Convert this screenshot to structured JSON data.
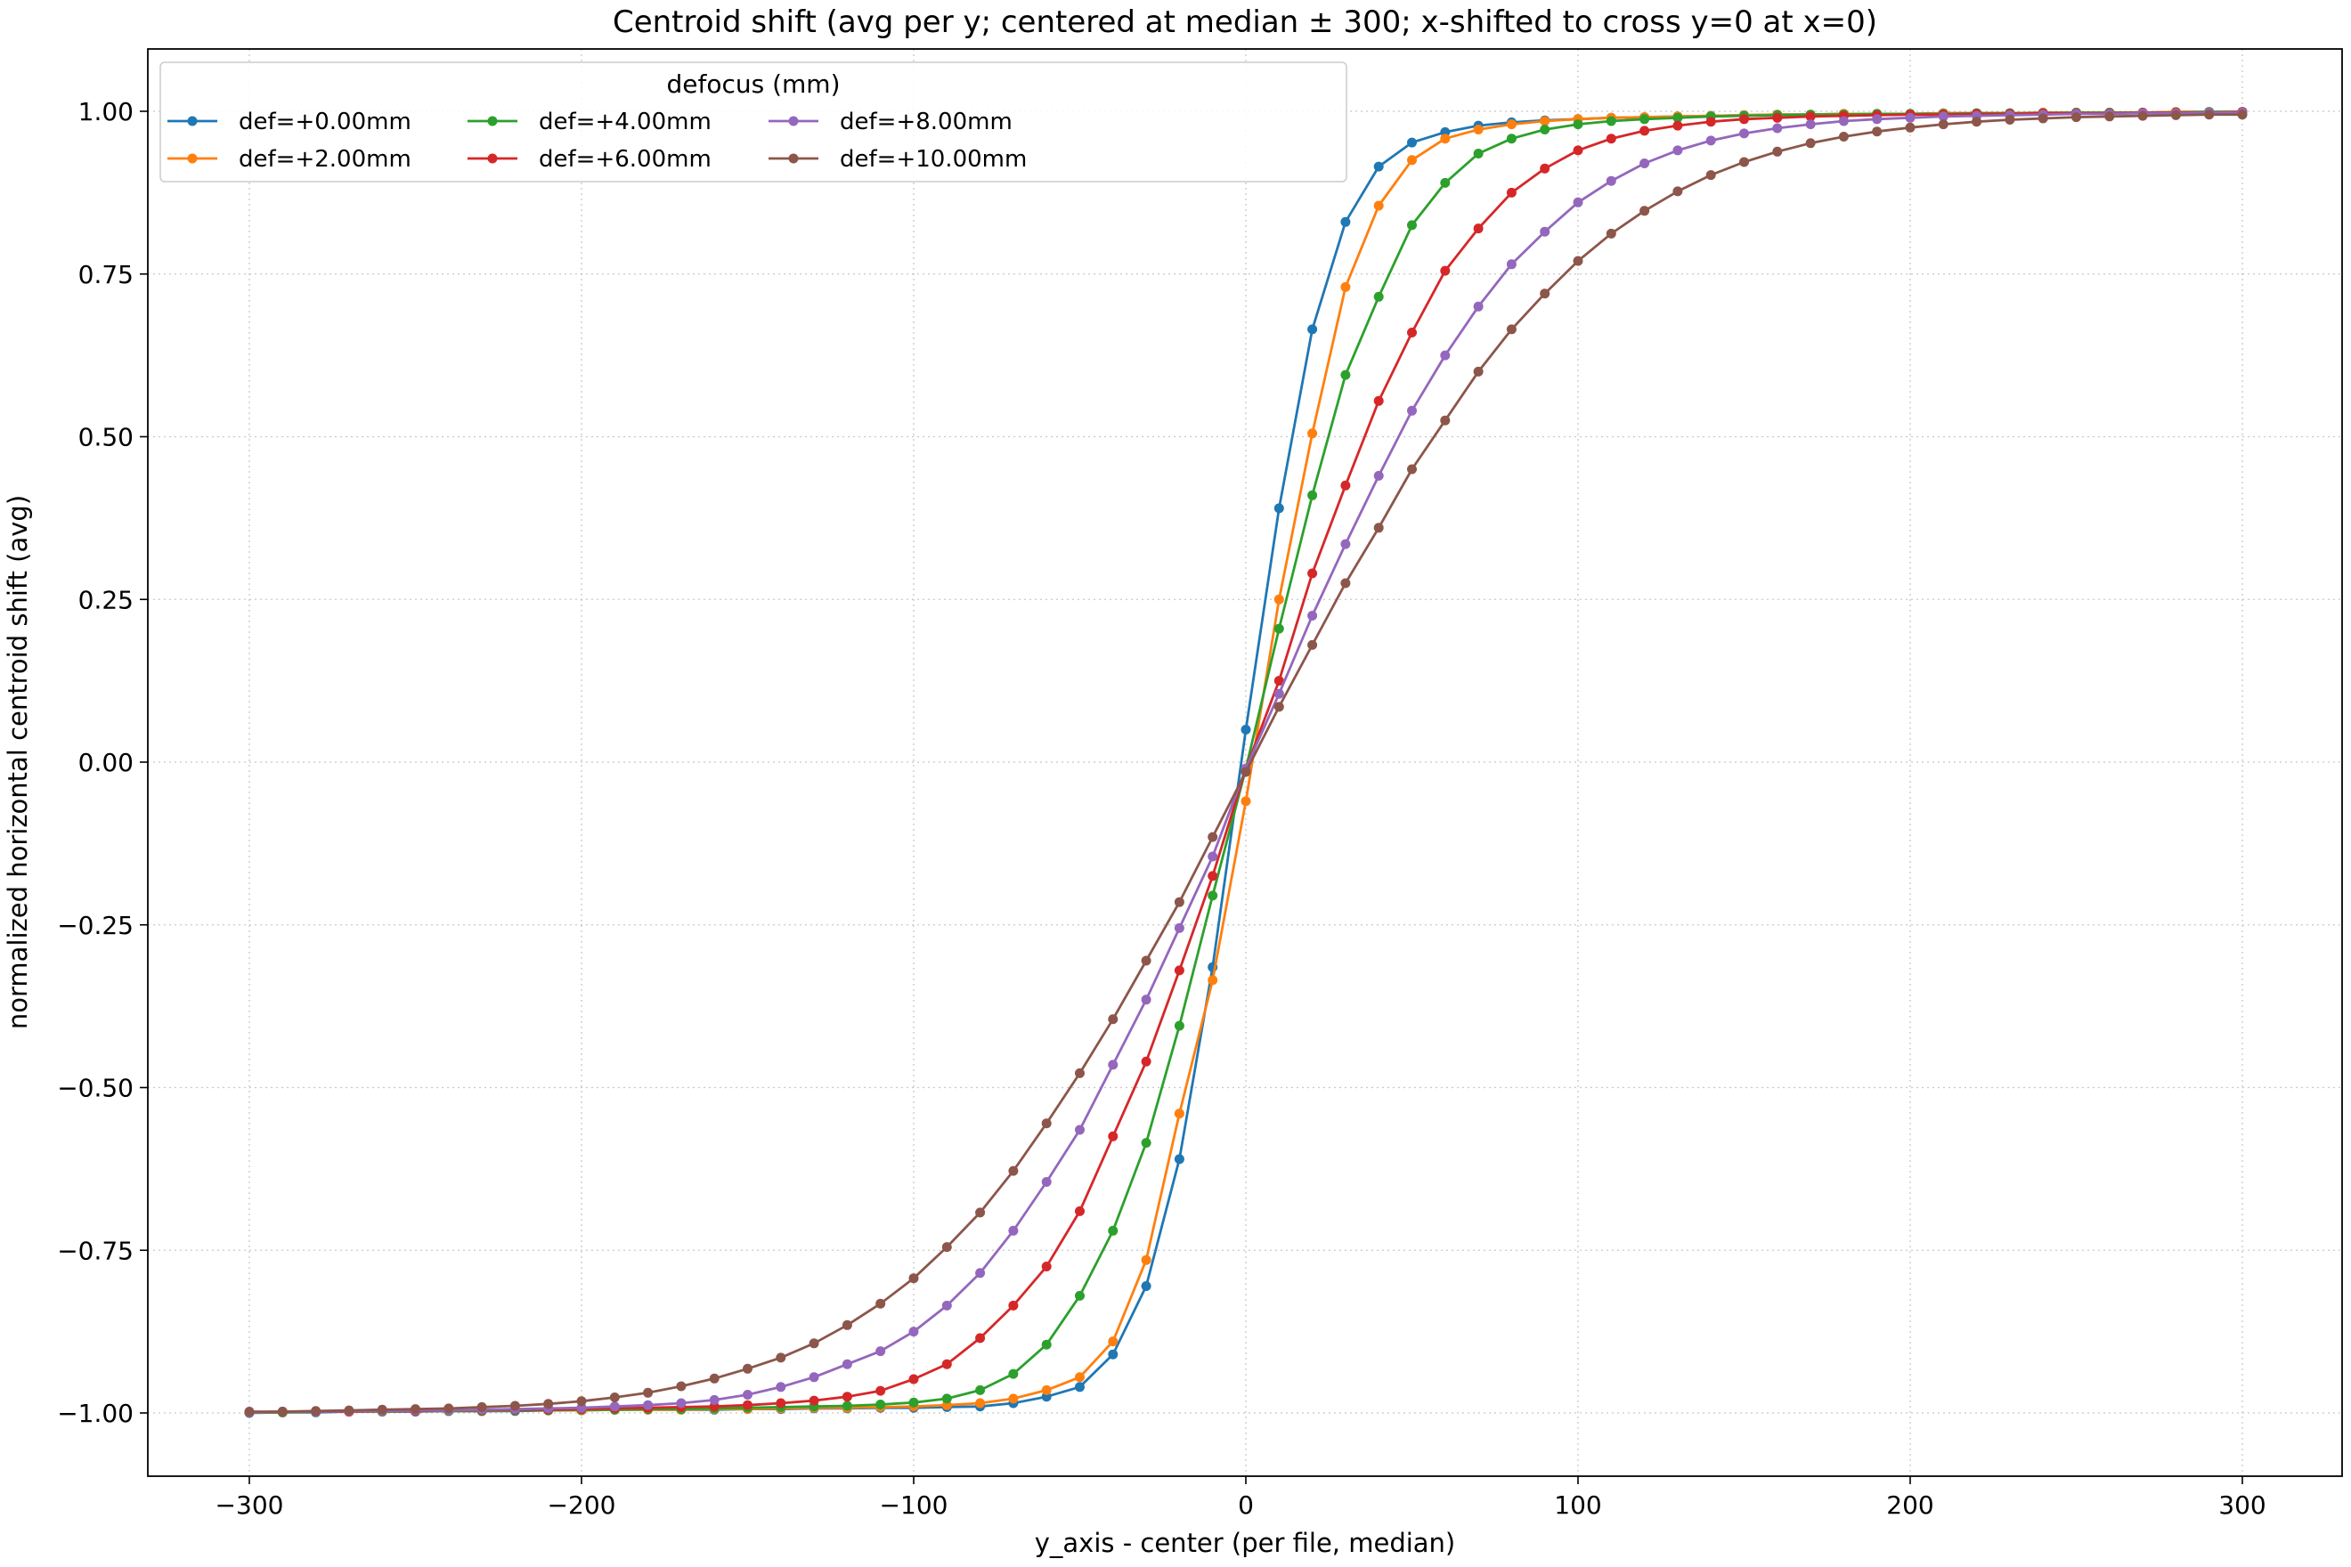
{
  "chart_data": {
    "type": "line",
    "title": "Centroid shift (avg per y; centered at median ± 300; x-shifted to cross y=0 at x=0)",
    "xlabel": "y_axis - center (per file, median)",
    "ylabel": "normalized horizontal centroid shift (avg)",
    "xlim": [
      -300,
      300
    ],
    "ylim": [
      -1.0,
      1.0
    ],
    "xticks": [
      -300,
      -200,
      -100,
      0,
      100,
      200,
      300
    ],
    "xtick_labels": [
      "−300",
      "−200",
      "−100",
      "0",
      "100",
      "200",
      "300"
    ],
    "yticks": [
      -1.0,
      -0.75,
      -0.5,
      -0.25,
      0.0,
      0.25,
      0.5,
      0.75,
      1.0
    ],
    "ytick_labels": [
      "−1.00",
      "−0.75",
      "−0.50",
      "−0.25",
      "0.00",
      "0.25",
      "0.50",
      "0.75",
      "1.00"
    ],
    "grid": true,
    "legend": {
      "title": "defocus (mm)",
      "placement": "top-left",
      "columns": 4
    },
    "series": [
      {
        "name": "def=+0.00mm",
        "color": "#1f77b4",
        "x": [
          -300,
          -290,
          -280,
          -270,
          -260,
          -250,
          -240,
          -230,
          -220,
          -210,
          -200,
          -190,
          -180,
          -170,
          -160,
          -150,
          -140,
          -130,
          -120,
          -110,
          -100,
          -90,
          -80,
          -70,
          -60,
          -50,
          -40,
          -30,
          -20,
          -10,
          0,
          10,
          20,
          30,
          40,
          50,
          60,
          70,
          80,
          90,
          100,
          110,
          120,
          130,
          140,
          150,
          160,
          170,
          180,
          190,
          200,
          210,
          220,
          230,
          240,
          250,
          260,
          270,
          280,
          290,
          300
        ],
        "y": [
          -1.0,
          -0.999,
          -0.999,
          -0.998,
          -0.998,
          -0.998,
          -0.997,
          -0.997,
          -0.997,
          -0.996,
          -0.996,
          -0.995,
          -0.995,
          -0.995,
          -0.995,
          -0.994,
          -0.994,
          -0.993,
          -0.993,
          -0.992,
          -0.992,
          -0.991,
          -0.99,
          -0.985,
          -0.975,
          -0.96,
          -0.91,
          -0.805,
          -0.61,
          -0.315,
          0.05,
          0.39,
          0.665,
          0.83,
          0.915,
          0.952,
          0.968,
          0.978,
          0.983,
          0.986,
          0.988,
          0.99,
          0.991,
          0.992,
          0.993,
          0.994,
          0.995,
          0.995,
          0.996,
          0.996,
          0.996,
          0.997,
          0.997,
          0.997,
          0.998,
          0.998,
          0.998,
          0.998,
          0.999,
          0.999,
          0.999
        ]
      },
      {
        "name": "def=+2.00mm",
        "color": "#ff7f0e",
        "x": [
          -300,
          -290,
          -280,
          -270,
          -260,
          -250,
          -240,
          -230,
          -220,
          -210,
          -200,
          -190,
          -180,
          -170,
          -160,
          -150,
          -140,
          -130,
          -120,
          -110,
          -100,
          -90,
          -80,
          -70,
          -60,
          -50,
          -40,
          -30,
          -20,
          -10,
          0,
          10,
          20,
          30,
          40,
          50,
          60,
          70,
          80,
          90,
          100,
          110,
          120,
          130,
          140,
          150,
          160,
          170,
          180,
          190,
          200,
          210,
          220,
          230,
          240,
          250,
          260,
          270,
          280,
          290,
          300
        ],
        "y": [
          -0.999,
          -0.999,
          -0.998,
          -0.998,
          -0.998,
          -0.997,
          -0.997,
          -0.997,
          -0.996,
          -0.996,
          -0.996,
          -0.995,
          -0.995,
          -0.995,
          -0.994,
          -0.994,
          -0.993,
          -0.992,
          -0.992,
          -0.991,
          -0.99,
          -0.988,
          -0.985,
          -0.978,
          -0.965,
          -0.945,
          -0.89,
          -0.765,
          -0.54,
          -0.335,
          -0.06,
          0.25,
          0.505,
          0.73,
          0.855,
          0.925,
          0.958,
          0.972,
          0.98,
          0.985,
          0.988,
          0.99,
          0.991,
          0.992,
          0.993,
          0.994,
          0.995,
          0.995,
          0.996,
          0.996,
          0.996,
          0.997,
          0.997,
          0.997,
          0.998,
          0.998,
          0.998,
          0.998,
          0.999,
          0.999,
          0.999
        ]
      },
      {
        "name": "def=+4.00mm",
        "color": "#2ca02c",
        "x": [
          -300,
          -290,
          -280,
          -270,
          -260,
          -250,
          -240,
          -230,
          -220,
          -210,
          -200,
          -190,
          -180,
          -170,
          -160,
          -150,
          -140,
          -130,
          -120,
          -110,
          -100,
          -90,
          -80,
          -70,
          -60,
          -50,
          -40,
          -30,
          -20,
          -10,
          0,
          10,
          20,
          30,
          40,
          50,
          60,
          70,
          80,
          90,
          100,
          110,
          120,
          130,
          140,
          150,
          160,
          170,
          180,
          190,
          200,
          210,
          220,
          230,
          240,
          250,
          260,
          270,
          280,
          290,
          300
        ],
        "y": [
          -0.999,
          -0.999,
          -0.998,
          -0.998,
          -0.998,
          -0.997,
          -0.997,
          -0.997,
          -0.996,
          -0.996,
          -0.995,
          -0.995,
          -0.994,
          -0.994,
          -0.993,
          -0.992,
          -0.991,
          -0.99,
          -0.989,
          -0.987,
          -0.984,
          -0.978,
          -0.965,
          -0.94,
          -0.895,
          -0.82,
          -0.72,
          -0.585,
          -0.405,
          -0.205,
          -0.01,
          0.205,
          0.41,
          0.595,
          0.715,
          0.825,
          0.89,
          0.935,
          0.958,
          0.972,
          0.98,
          0.985,
          0.988,
          0.99,
          0.992,
          0.993,
          0.994,
          0.995,
          0.995,
          0.996,
          0.996,
          0.996,
          0.997,
          0.997,
          0.997,
          0.998,
          0.998,
          0.998,
          0.998,
          0.999,
          0.999
        ]
      },
      {
        "name": "def=+6.00mm",
        "color": "#d62728",
        "x": [
          -300,
          -290,
          -280,
          -270,
          -260,
          -250,
          -240,
          -230,
          -220,
          -210,
          -200,
          -190,
          -180,
          -170,
          -160,
          -150,
          -140,
          -130,
          -120,
          -110,
          -100,
          -90,
          -80,
          -70,
          -60,
          -50,
          -40,
          -30,
          -20,
          -10,
          0,
          10,
          20,
          30,
          40,
          50,
          60,
          70,
          80,
          90,
          100,
          110,
          120,
          130,
          140,
          150,
          160,
          170,
          180,
          190,
          200,
          210,
          220,
          230,
          240,
          250,
          260,
          270,
          280,
          290,
          300
        ],
        "y": [
          -0.999,
          -0.998,
          -0.998,
          -0.998,
          -0.997,
          -0.997,
          -0.996,
          -0.996,
          -0.995,
          -0.995,
          -0.994,
          -0.993,
          -0.992,
          -0.991,
          -0.99,
          -0.988,
          -0.985,
          -0.981,
          -0.975,
          -0.966,
          -0.948,
          -0.925,
          -0.885,
          -0.835,
          -0.775,
          -0.69,
          -0.575,
          -0.46,
          -0.32,
          -0.175,
          -0.01,
          0.125,
          0.29,
          0.425,
          0.555,
          0.66,
          0.755,
          0.82,
          0.875,
          0.912,
          0.94,
          0.958,
          0.97,
          0.978,
          0.984,
          0.988,
          0.99,
          0.992,
          0.993,
          0.994,
          0.995,
          0.995,
          0.996,
          0.996,
          0.997,
          0.997,
          0.997,
          0.998,
          0.998,
          0.998,
          0.999
        ]
      },
      {
        "name": "def=+8.00mm",
        "color": "#9467bd",
        "x": [
          -300,
          -290,
          -280,
          -270,
          -260,
          -250,
          -240,
          -230,
          -220,
          -210,
          -200,
          -190,
          -180,
          -170,
          -160,
          -150,
          -140,
          -130,
          -120,
          -110,
          -100,
          -90,
          -80,
          -70,
          -60,
          -50,
          -40,
          -30,
          -20,
          -10,
          0,
          10,
          20,
          30,
          40,
          50,
          60,
          70,
          80,
          90,
          100,
          110,
          120,
          130,
          140,
          150,
          160,
          170,
          180,
          190,
          200,
          210,
          220,
          230,
          240,
          250,
          260,
          270,
          280,
          290,
          300
        ],
        "y": [
          -0.999,
          -0.998,
          -0.998,
          -0.997,
          -0.997,
          -0.996,
          -0.996,
          -0.995,
          -0.994,
          -0.993,
          -0.992,
          -0.99,
          -0.988,
          -0.985,
          -0.98,
          -0.972,
          -0.96,
          -0.945,
          -0.925,
          -0.905,
          -0.875,
          -0.835,
          -0.785,
          -0.72,
          -0.645,
          -0.565,
          -0.465,
          -0.365,
          -0.255,
          -0.145,
          -0.01,
          0.105,
          0.225,
          0.335,
          0.44,
          0.54,
          0.625,
          0.7,
          0.765,
          0.815,
          0.86,
          0.893,
          0.92,
          0.94,
          0.955,
          0.966,
          0.974,
          0.98,
          0.985,
          0.988,
          0.99,
          0.992,
          0.993,
          0.994,
          0.995,
          0.996,
          0.996,
          0.997,
          0.997,
          0.998,
          0.998
        ]
      },
      {
        "name": "def=+10.00mm",
        "color": "#8c564b",
        "x": [
          -300,
          -290,
          -280,
          -270,
          -260,
          -250,
          -240,
          -230,
          -220,
          -210,
          -200,
          -190,
          -180,
          -170,
          -160,
          -150,
          -140,
          -130,
          -120,
          -110,
          -100,
          -90,
          -80,
          -70,
          -60,
          -50,
          -40,
          -30,
          -20,
          -10,
          0,
          10,
          20,
          30,
          40,
          50,
          60,
          70,
          80,
          90,
          100,
          110,
          120,
          130,
          140,
          150,
          160,
          170,
          180,
          190,
          200,
          210,
          220,
          230,
          240,
          250,
          260,
          270,
          280,
          290,
          300
        ],
        "y": [
          -0.998,
          -0.998,
          -0.997,
          -0.996,
          -0.995,
          -0.994,
          -0.993,
          -0.991,
          -0.989,
          -0.986,
          -0.982,
          -0.976,
          -0.969,
          -0.959,
          -0.947,
          -0.932,
          -0.915,
          -0.893,
          -0.865,
          -0.832,
          -0.793,
          -0.745,
          -0.692,
          -0.628,
          -0.555,
          -0.478,
          -0.395,
          -0.305,
          -0.215,
          -0.115,
          -0.015,
          0.085,
          0.18,
          0.275,
          0.36,
          0.45,
          0.525,
          0.6,
          0.665,
          0.72,
          0.77,
          0.812,
          0.847,
          0.877,
          0.902,
          0.922,
          0.938,
          0.951,
          0.961,
          0.969,
          0.975,
          0.98,
          0.984,
          0.987,
          0.989,
          0.991,
          0.992,
          0.993,
          0.994,
          0.995,
          0.995
        ]
      }
    ]
  }
}
